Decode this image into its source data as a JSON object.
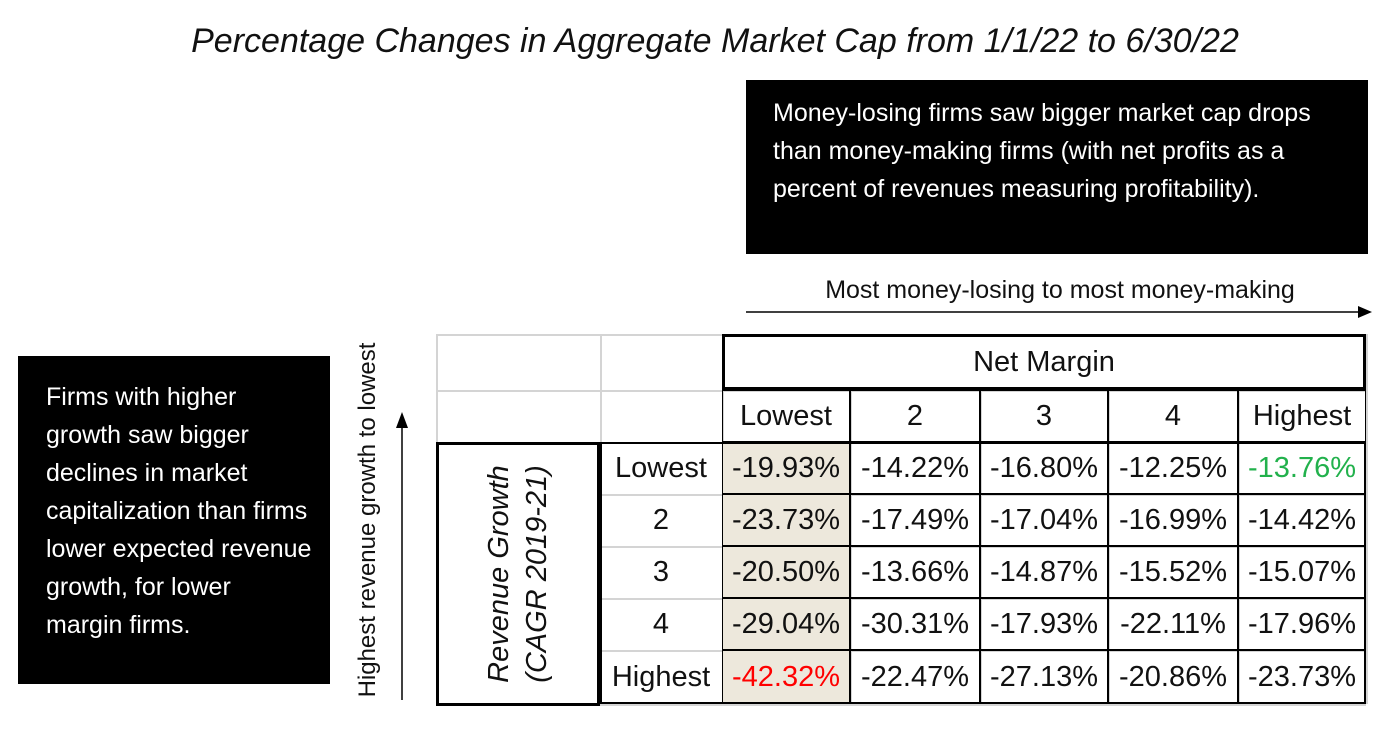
{
  "title": "Percentage Changes in Aggregate Market Cap from 1/1/22 to 6/30/22",
  "notes": {
    "top": "Money-losing firms saw bigger market cap drops than money-making firms (with net profits as a percent of revenues measuring profitability).",
    "left": "Firms with higher growth saw bigger declines in market capitalization than firms lower expected revenue growth, for lower margin firms."
  },
  "axis_labels": {
    "horizontal": "Most money-losing to most money-making",
    "vertical": "Highest revenue growth to lowest"
  },
  "colors": {
    "shade": "#ede8dc",
    "highlight_negative": "#ff0000",
    "highlight_positive": "#22b14c"
  },
  "chart_data": {
    "type": "table",
    "column_group_label": "Net Margin",
    "row_group_label": "Revenue Growth (CAGR 2019-21)",
    "columns": [
      "Lowest",
      "2",
      "3",
      "4",
      "Highest"
    ],
    "rows": [
      "Lowest",
      "2",
      "3",
      "4",
      "Highest"
    ],
    "values": [
      [
        "-19.93%",
        "-14.22%",
        "-16.80%",
        "-12.25%",
        "-13.76%"
      ],
      [
        "-23.73%",
        "-17.49%",
        "-17.04%",
        "-16.99%",
        "-14.42%"
      ],
      [
        "-20.50%",
        "-13.66%",
        "-14.87%",
        "-15.52%",
        "-15.07%"
      ],
      [
        "-29.04%",
        "-30.31%",
        "-17.93%",
        "-22.11%",
        "-17.96%"
      ],
      [
        "-42.32%",
        "-22.47%",
        "-27.13%",
        "-20.86%",
        "-23.73%"
      ]
    ],
    "highlighted_cells": [
      {
        "row": 4,
        "col": 0,
        "color": "red"
      },
      {
        "row": 0,
        "col": 4,
        "color": "green"
      }
    ]
  }
}
